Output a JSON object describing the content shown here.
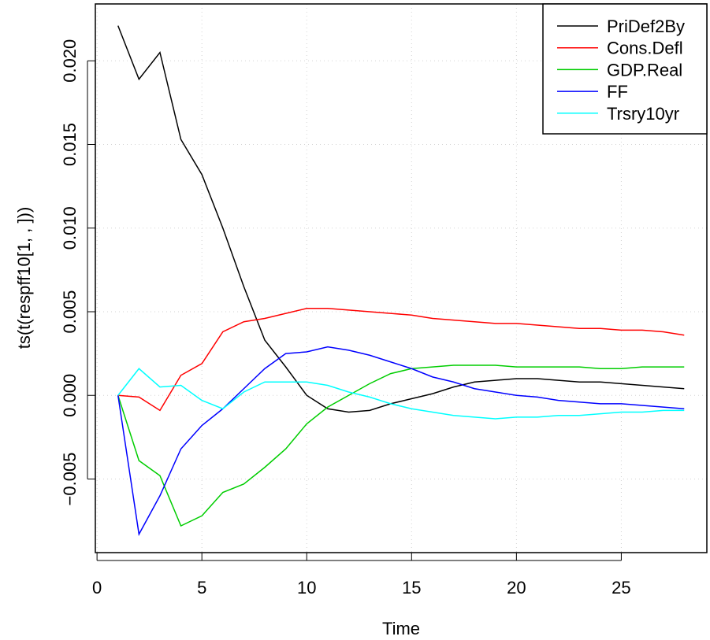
{
  "chart_data": {
    "type": "line",
    "xlabel": "Time",
    "ylabel": "ts(t(respff10[1, , ]))",
    "x": [
      1,
      2,
      3,
      4,
      5,
      6,
      7,
      8,
      9,
      10,
      11,
      12,
      13,
      14,
      15,
      16,
      17,
      18,
      19,
      20,
      21,
      22,
      23,
      24,
      25,
      26,
      27,
      28
    ],
    "series": [
      {
        "name": "PriDef2By",
        "color": "#000000",
        "values": [
          0.0221,
          0.0189,
          0.0205,
          0.0153,
          0.0132,
          0.01,
          0.0065,
          0.0033,
          0.0017,
          0.0,
          -0.0008,
          -0.001,
          -0.0009,
          -0.0005,
          -0.0002,
          0.0001,
          0.0005,
          0.0008,
          0.0009,
          0.001,
          0.001,
          0.0009,
          0.0008,
          0.0008,
          0.0007,
          0.0006,
          0.0005,
          0.0004
        ]
      },
      {
        "name": "Cons.Defl",
        "color": "#ff0000",
        "values": [
          0.0,
          -0.0001,
          -0.0009,
          0.0012,
          0.0019,
          0.0038,
          0.0044,
          0.0046,
          0.0049,
          0.0052,
          0.0052,
          0.0051,
          0.005,
          0.0049,
          0.0048,
          0.0046,
          0.0045,
          0.0044,
          0.0043,
          0.0043,
          0.0042,
          0.0041,
          0.004,
          0.004,
          0.0039,
          0.0039,
          0.0038,
          0.0036
        ]
      },
      {
        "name": "GDP.Real",
        "color": "#00cd00",
        "values": [
          0.0,
          -0.0039,
          -0.0048,
          -0.0078,
          -0.0072,
          -0.0058,
          -0.0053,
          -0.0043,
          -0.0032,
          -0.0017,
          -0.0007,
          0.0,
          0.0007,
          0.0013,
          0.0016,
          0.0017,
          0.0018,
          0.0018,
          0.0018,
          0.0017,
          0.0017,
          0.0017,
          0.0017,
          0.0016,
          0.0016,
          0.0017,
          0.0017,
          0.0017
        ]
      },
      {
        "name": "FF",
        "color": "#0000ff",
        "values": [
          0.0,
          -0.0083,
          -0.006,
          -0.0032,
          -0.0018,
          -0.0008,
          0.0004,
          0.0016,
          0.0025,
          0.0026,
          0.0029,
          0.0027,
          0.0024,
          0.002,
          0.0016,
          0.0011,
          0.0008,
          0.0004,
          0.0002,
          0.0,
          -0.0001,
          -0.0003,
          -0.0004,
          -0.0005,
          -0.0005,
          -0.0006,
          -0.0007,
          -0.0008
        ]
      },
      {
        "name": "Trsry10yr",
        "color": "#00ffff",
        "values": [
          0.0,
          0.0016,
          0.0005,
          0.0006,
          -0.0003,
          -0.0008,
          0.0002,
          0.0008,
          0.0008,
          0.0008,
          0.0006,
          0.0002,
          -0.0001,
          -0.0005,
          -0.0008,
          -0.001,
          -0.0012,
          -0.0013,
          -0.0014,
          -0.0013,
          -0.0013,
          -0.0012,
          -0.0012,
          -0.0011,
          -0.001,
          -0.001,
          -0.0009,
          -0.0009
        ]
      }
    ],
    "xlim": [
      -0.08,
      29.08
    ],
    "xticks": [
      0,
      5,
      10,
      15,
      20,
      25
    ],
    "ylim": [
      -0.0094,
      0.0234
    ],
    "yticks": [
      {
        "value": -0.005,
        "label": "−0.005"
      },
      {
        "value": 0,
        "label": "0.000"
      },
      {
        "value": 0.005,
        "label": "0.005"
      },
      {
        "value": 0.01,
        "label": "0.010"
      },
      {
        "value": 0.015,
        "label": "0.015"
      },
      {
        "value": 0.02,
        "label": "0.020"
      }
    ],
    "grid": true,
    "legend": "topright"
  }
}
